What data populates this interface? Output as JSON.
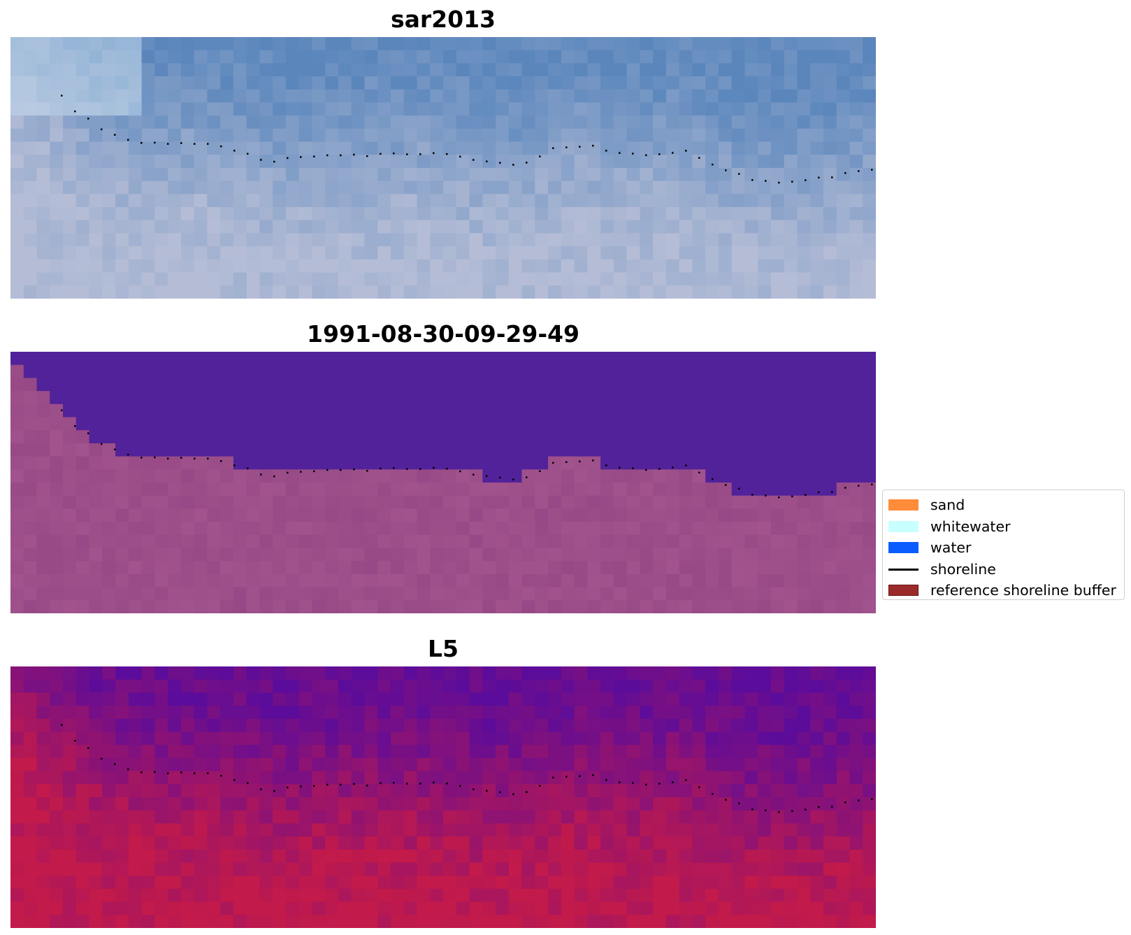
{
  "panels": [
    {
      "title": "sar2013"
    },
    {
      "title": "1991-08-30-09-29-49"
    },
    {
      "title": "L5"
    }
  ],
  "legend": [
    {
      "label": "sand",
      "kind": "patch",
      "color": "#ff8c3a",
      "edge": "#ff8c3a"
    },
    {
      "label": "whitewater",
      "kind": "patch",
      "color": "#c8ffff",
      "edge": "#c8ffff"
    },
    {
      "label": "water",
      "kind": "patch",
      "color": "#0a5cff",
      "edge": "#0a5cff"
    },
    {
      "label": "shoreline",
      "kind": "line",
      "color": "#000000"
    },
    {
      "label": "reference shoreline buffer",
      "kind": "patch",
      "color": "#9b2b2b",
      "edge": "#6b1010"
    }
  ],
  "colors": {
    "rgb_water": "#5a86bc",
    "rgb_land": "#b5bdd6",
    "mndwi_water": "#52229a",
    "mndwi_land": "#8e4280",
    "prob_water": "#5c0c9a",
    "prob_land": "#c21a4a",
    "shoreline_dots": "#000000"
  }
}
